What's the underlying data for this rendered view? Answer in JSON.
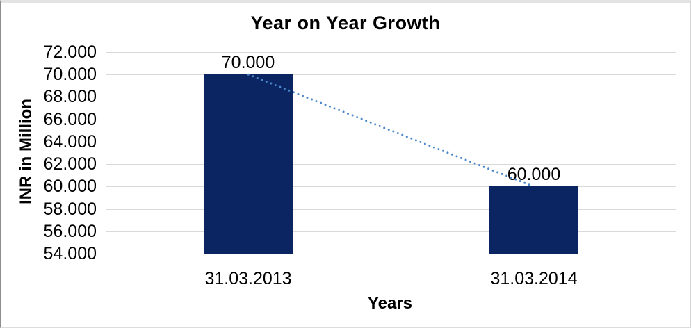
{
  "chart_data": {
    "type": "bar",
    "title": "Year on Year Growth",
    "xlabel": "Years",
    "ylabel": "INR in Million",
    "categories": [
      "31.03.2013",
      "31.03.2014"
    ],
    "values": [
      70,
      60
    ],
    "data_labels": [
      "70.000",
      "60.000"
    ],
    "ylim": [
      54,
      72
    ],
    "ytick_step": 2,
    "ytick_values": [
      72,
      70,
      68,
      66,
      64,
      62,
      60,
      58,
      56,
      54
    ],
    "ytick_labels": [
      "72.000",
      "70.000",
      "68.000",
      "66.000",
      "64.000",
      "62.000",
      "60.000",
      "58.000",
      "56.000",
      "54.000"
    ],
    "grid": true,
    "legend": "none",
    "trendline": {
      "style": "dotted",
      "from_category_index": 0,
      "from_value": 70,
      "to_category_index": 1,
      "to_value": 60
    },
    "colors": {
      "bar": "#0a2562",
      "trendline": "#4a86c9",
      "gridline": "#d9d9d9",
      "text": "#000000"
    }
  }
}
